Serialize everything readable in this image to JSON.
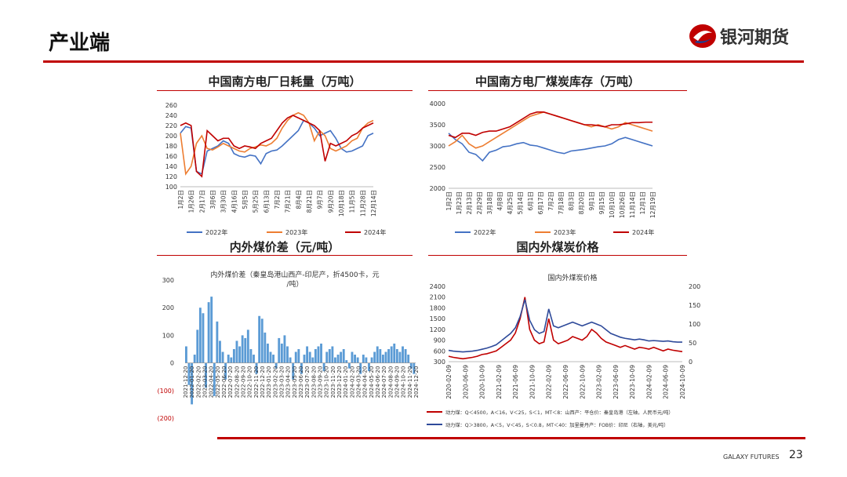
{
  "page": {
    "title": "产业端",
    "brand": "银河期货",
    "footer": "GALAXY FUTURES",
    "page_number": "23"
  },
  "colors": {
    "accent": "#c00000",
    "blue": "#4472c4",
    "orange": "#ed7d31",
    "red": "#c00000",
    "bar": "#5b9bd5",
    "navy": "#2e4a9a"
  },
  "chart_data": [
    {
      "id": "consumption",
      "type": "line",
      "title": "中国南方电厂日耗量（万吨）",
      "ylim": [
        100,
        260
      ],
      "yticks": [
        "260",
        "240",
        "220",
        "200",
        "180",
        "160",
        "140",
        "120",
        "100"
      ],
      "xticks": [
        "1月2日",
        "1月26日",
        "2月17日",
        "3月6日",
        "3月30日",
        "4月16日",
        "5月5日",
        "5月25日",
        "6月13日",
        "7月2日",
        "7月21日",
        "8月4日",
        "8月21日",
        "9月7日",
        "9月20日",
        "10月18日",
        "11月5日",
        "11月28日",
        "12月14日"
      ],
      "series": [
        {
          "name": "2022年",
          "color": "#4472c4",
          "values": [
            205,
            218,
            215,
            130,
            125,
            170,
            175,
            180,
            190,
            185,
            165,
            160,
            158,
            162,
            160,
            145,
            165,
            170,
            172,
            180,
            190,
            200,
            210,
            230,
            225,
            215,
            200,
            205,
            210,
            195,
            175,
            168,
            170,
            175,
            180,
            200,
            205
          ]
        },
        {
          "name": "2023年",
          "color": "#ed7d31",
          "values": [
            205,
            125,
            140,
            185,
            200,
            175,
            172,
            178,
            185,
            180,
            175,
            170,
            168,
            175,
            178,
            182,
            180,
            185,
            195,
            215,
            230,
            240,
            245,
            240,
            225,
            190,
            210,
            200,
            175,
            170,
            175,
            180,
            190,
            195,
            215,
            225,
            230
          ]
        },
        {
          "name": "2024年",
          "color": "#c00000",
          "values": [
            220,
            225,
            220,
            130,
            120,
            210,
            200,
            190,
            195,
            195,
            180,
            175,
            180,
            178,
            175,
            185,
            190,
            195,
            210,
            225,
            235,
            240,
            235,
            230,
            225,
            220,
            210,
            150,
            185,
            180,
            185,
            190,
            200,
            205,
            215,
            220,
            225
          ]
        }
      ]
    },
    {
      "id": "inventory",
      "type": "line",
      "title": "中国南方电厂煤炭库存（万吨）",
      "ylim": [
        2000,
        4000
      ],
      "yticks": [
        "4000",
        "3500",
        "3000",
        "2500",
        "2000"
      ],
      "xticks": [
        "1月2日",
        "1月23日",
        "2月13日",
        "2月29日",
        "3月18日",
        "4月8日",
        "4月25日",
        "5月14日",
        "6月1日",
        "6月17日",
        "7月2日",
        "7月18日",
        "8月3日",
        "8月20日",
        "9月1日",
        "9月15日",
        "10月10日",
        "10月26日",
        "11月14日",
        "12月1日",
        "12月19日"
      ],
      "series": [
        {
          "name": "2022年",
          "color": "#4472c4",
          "values": [
            3300,
            3150,
            3050,
            2850,
            2800,
            2650,
            2850,
            2900,
            2980,
            3000,
            3050,
            3080,
            3020,
            3000,
            2950,
            2900,
            2850,
            2820,
            2880,
            2900,
            2920,
            2950,
            2980,
            3000,
            3050,
            3150,
            3200,
            3150,
            3100,
            3050,
            3000
          ]
        },
        {
          "name": "2023年",
          "color": "#ed7d31",
          "values": [
            3000,
            3100,
            3250,
            3050,
            2950,
            3000,
            3100,
            3200,
            3300,
            3400,
            3500,
            3600,
            3700,
            3750,
            3800,
            3750,
            3700,
            3650,
            3600,
            3550,
            3500,
            3450,
            3500,
            3450,
            3400,
            3450,
            3550,
            3500,
            3450,
            3400,
            3350
          ]
        },
        {
          "name": "2024年",
          "color": "#c00000",
          "values": [
            3250,
            3200,
            3300,
            3300,
            3250,
            3320,
            3350,
            3350,
            3400,
            3450,
            3550,
            3650,
            3750,
            3800,
            3800,
            3750,
            3700,
            3650,
            3600,
            3550,
            3500,
            3500,
            3480,
            3450,
            3500,
            3500,
            3520,
            3550,
            3550,
            3560,
            3560
          ]
        }
      ]
    },
    {
      "id": "spread",
      "type": "bar",
      "title": "内外煤价差（元/吨）",
      "inner_title": "内外煤价差（秦皇岛港山西产-印尼产，折4500卡，元/吨）",
      "ylim": [
        -200,
        300
      ],
      "yticks": [
        "300",
        "200",
        "100",
        "0",
        "(100)",
        "(200)"
      ],
      "xticks": [
        "2021-12-20",
        "2022-01-20",
        "2022-02-20",
        "2022-03-20",
        "2022-04-20",
        "2022-05-20",
        "2022-06-20",
        "2022-07-20",
        "2022-08-20",
        "2022-09-20",
        "2022-10-20",
        "2022-11-20",
        "2022-12-20",
        "2023-01-20",
        "2023-02-20",
        "2023-03-20",
        "2023-04-20",
        "2023-05-20",
        "2023-06-20",
        "2023-07-20",
        "2023-08-20",
        "2023-09-20",
        "2023-10-20",
        "2023-11-20",
        "2023-12-20",
        "2024-01-20",
        "2024-02-20",
        "2024-03-20",
        "2024-04-20",
        "2024-05-20",
        "2024-06-20",
        "2024-07-20",
        "2024-08-20",
        "2024-09-20",
        "2024-10-20",
        "2024-11-20",
        "2024-12-20"
      ],
      "values": [
        60,
        -80,
        -150,
        30,
        120,
        200,
        180,
        -90,
        220,
        240,
        -120,
        150,
        80,
        40,
        -60,
        30,
        20,
        50,
        80,
        60,
        100,
        90,
        120,
        50,
        30,
        -40,
        170,
        160,
        110,
        70,
        40,
        30,
        -20,
        90,
        70,
        100,
        60,
        20,
        -60,
        40,
        50,
        -40,
        30,
        60,
        40,
        20,
        50,
        60,
        70,
        -30,
        40,
        50,
        60,
        20,
        30,
        40,
        50,
        10,
        -20,
        40,
        30,
        20,
        -40,
        30,
        20,
        -30,
        20,
        40,
        60,
        50,
        30,
        40,
        50,
        60,
        70,
        50,
        40,
        60,
        50,
        30,
        -20,
        -40
      ]
    },
    {
      "id": "prices",
      "type": "line",
      "title": "国内外煤炭价格",
      "inner_title": "国内外煤炭价格",
      "ylim_left": [
        300,
        2400
      ],
      "ylim_right": [
        0,
        200
      ],
      "yticks_left": [
        "2400",
        "2100",
        "1800",
        "1500",
        "1200",
        "900",
        "600",
        "300"
      ],
      "yticks_right": [
        "200",
        "150",
        "100",
        "50",
        "0"
      ],
      "xticks": [
        "2020-02-09",
        "2020-06-09",
        "2020-10-09",
        "2021-02-09",
        "2021-06-09",
        "2021-10-09",
        "2022-02-09",
        "2022-06-09",
        "2022-10-09",
        "2023-02-09",
        "2023-06-09",
        "2023-10-09",
        "2024-02-09",
        "2024-06-09",
        "2024-10-09"
      ],
      "series": [
        {
          "name": "动力煤：Q＜4500，A＜16，V＜25，S＜1，MT＜8：山西产：平仓价：秦皇岛港（左轴，人民币元/吨）",
          "axis": "left",
          "color": "#c00000",
          "values": [
            450,
            420,
            400,
            380,
            400,
            420,
            450,
            500,
            520,
            560,
            600,
            700,
            800,
            900,
            1100,
            1500,
            2100,
            1200,
            900,
            800,
            850,
            1500,
            900,
            800,
            850,
            900,
            1000,
            950,
            900,
            1000,
            1200,
            1100,
            950,
            850,
            800,
            750,
            700,
            750,
            700,
            650,
            700,
            680,
            650,
            700,
            650,
            600,
            650,
            620,
            600,
            580
          ]
        },
        {
          "name": "动力煤：Q＞3800，A＜5，V＜45，S＜0.8，MT＜40：加里曼丹产：FOB价：印尼（右轴，美元/吨）",
          "axis": "right",
          "color": "#2e4a9a",
          "values": [
            30,
            28,
            27,
            26,
            27,
            28,
            30,
            33,
            36,
            40,
            45,
            55,
            65,
            75,
            90,
            120,
            165,
            110,
            85,
            75,
            80,
            140,
            95,
            90,
            95,
            100,
            105,
            100,
            95,
            100,
            105,
            100,
            95,
            85,
            75,
            70,
            65,
            62,
            60,
            58,
            60,
            58,
            55,
            56,
            55,
            54,
            55,
            53,
            52,
            52
          ]
        }
      ]
    }
  ]
}
